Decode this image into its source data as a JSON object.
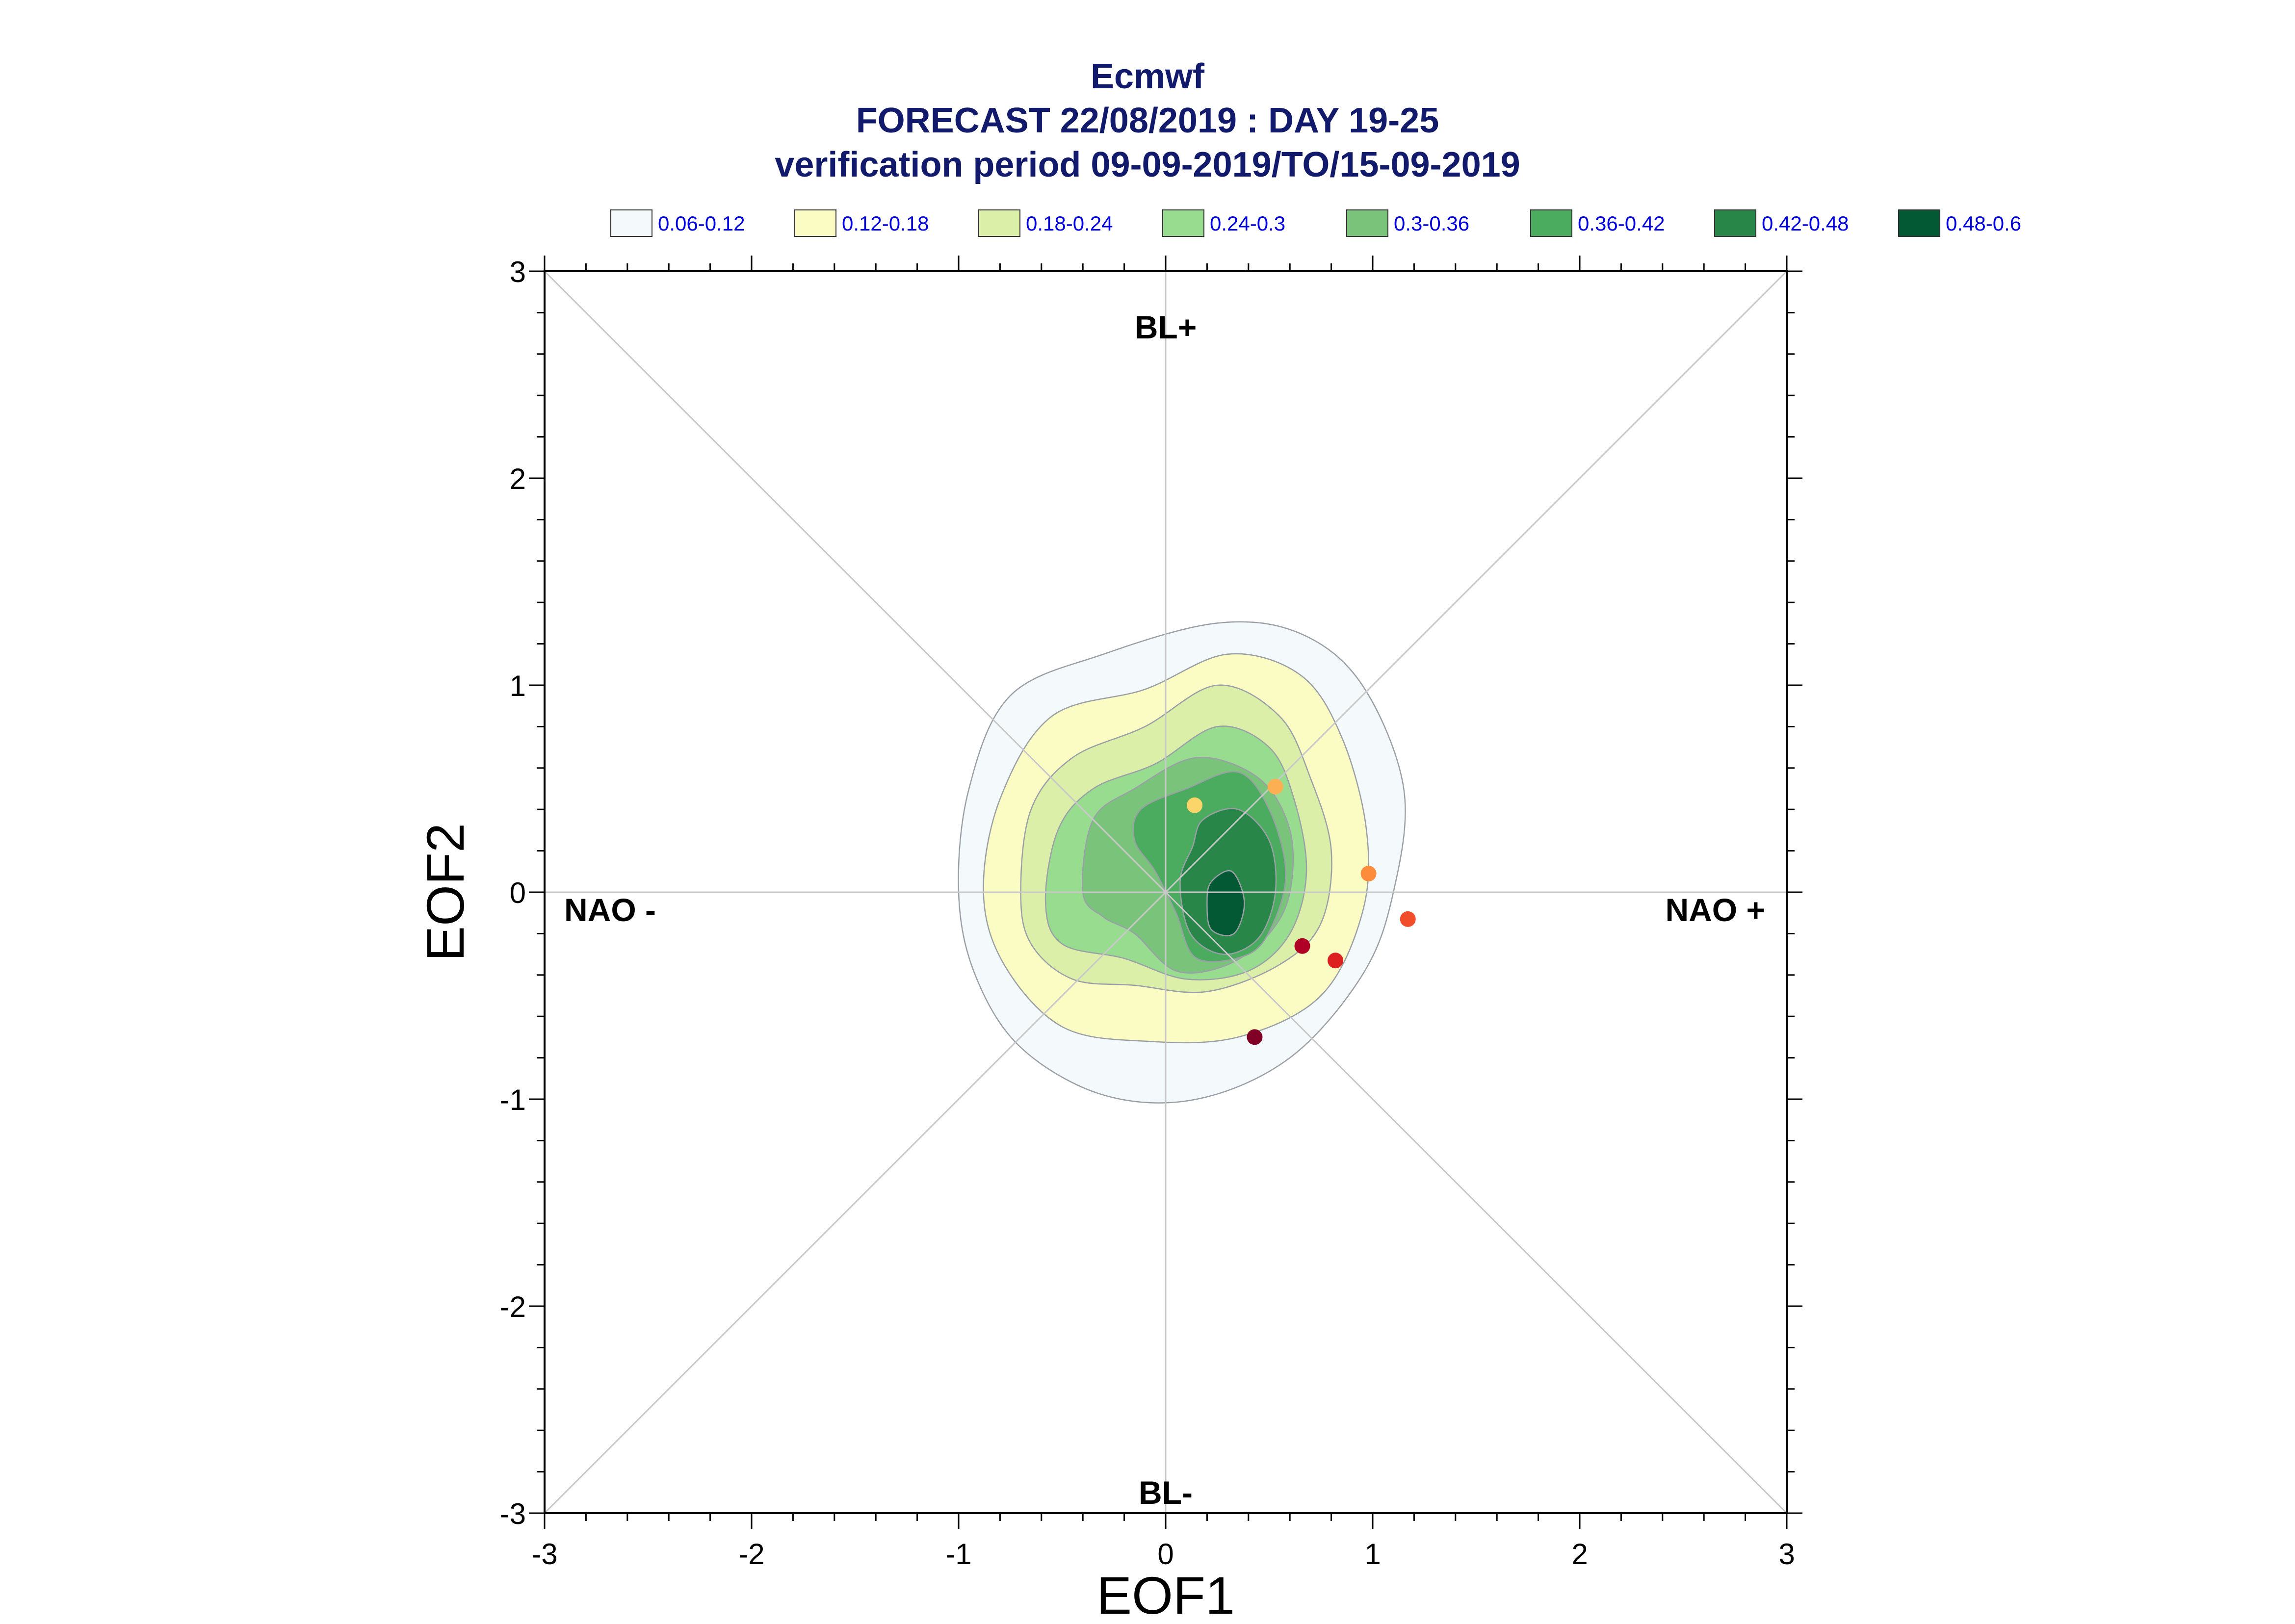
{
  "chart_data": {
    "type": "scatter",
    "title_lines": [
      "Ecmwf",
      "FORECAST 22/08/2019 : DAY 19-25",
      "verification period 09-09-2019/TO/15-09-2019"
    ],
    "xlabel": "EOF1",
    "ylabel": "EOF2",
    "xlim": [
      -3,
      3
    ],
    "ylim": [
      -3,
      3
    ],
    "xticks": [
      "-3",
      "-2",
      "-1",
      "0",
      "1",
      "2",
      "3"
    ],
    "yticks": [
      "3",
      "2",
      "1",
      "0",
      "-1",
      "-2",
      "-3"
    ],
    "regime_labels": {
      "top": "BL+",
      "bottom": "BL-",
      "left": "NAO -",
      "right": "NAO +"
    },
    "legend": [
      {
        "label": "0.06-0.12",
        "color": "#f4f9fc"
      },
      {
        "label": "0.12-0.18",
        "color": "#fbfbc4"
      },
      {
        "label": "0.18-0.24",
        "color": "#dcefa9"
      },
      {
        "label": "0.24-0.3",
        "color": "#97dc8f"
      },
      {
        "label": "0.3-0.36",
        "color": "#79c47a"
      },
      {
        "label": "0.36-0.42",
        "color": "#4bab5f"
      },
      {
        "label": "0.42-0.48",
        "color": "#288748"
      },
      {
        "label": "0.48-0.6",
        "color": "#025934"
      }
    ],
    "density_contours": [
      {
        "level": "0.06-0.12",
        "color": "#f4f9fc",
        "points": [
          [
            -1.0,
            0.0
          ],
          [
            -0.95,
            0.5
          ],
          [
            -0.75,
            0.95
          ],
          [
            -0.3,
            1.15
          ],
          [
            0.25,
            1.3
          ],
          [
            0.65,
            1.25
          ],
          [
            0.95,
            1.0
          ],
          [
            1.15,
            0.5
          ],
          [
            1.1,
            0.0
          ],
          [
            0.95,
            -0.4
          ],
          [
            0.6,
            -0.8
          ],
          [
            0.15,
            -1.0
          ],
          [
            -0.3,
            -0.98
          ],
          [
            -0.7,
            -0.75
          ],
          [
            -0.92,
            -0.4
          ]
        ]
      },
      {
        "level": "0.12-0.18",
        "color": "#fbfbc4",
        "points": [
          [
            -0.88,
            0.0
          ],
          [
            -0.8,
            0.45
          ],
          [
            -0.55,
            0.85
          ],
          [
            -0.1,
            0.98
          ],
          [
            0.3,
            1.15
          ],
          [
            0.65,
            1.05
          ],
          [
            0.85,
            0.75
          ],
          [
            0.97,
            0.3
          ],
          [
            0.95,
            -0.1
          ],
          [
            0.75,
            -0.5
          ],
          [
            0.35,
            -0.7
          ],
          [
            -0.1,
            -0.72
          ],
          [
            -0.5,
            -0.65
          ],
          [
            -0.78,
            -0.35
          ]
        ]
      },
      {
        "level": "0.18-0.24",
        "color": "#dcefa9",
        "points": [
          [
            -0.7,
            0.0
          ],
          [
            -0.65,
            0.4
          ],
          [
            -0.45,
            0.65
          ],
          [
            -0.1,
            0.8
          ],
          [
            0.25,
            1.0
          ],
          [
            0.55,
            0.85
          ],
          [
            0.7,
            0.55
          ],
          [
            0.8,
            0.2
          ],
          [
            0.75,
            -0.15
          ],
          [
            0.55,
            -0.35
          ],
          [
            0.2,
            -0.48
          ],
          [
            -0.15,
            -0.45
          ],
          [
            -0.45,
            -0.42
          ],
          [
            -0.65,
            -0.25
          ]
        ]
      },
      {
        "level": "0.24-0.3",
        "color": "#97dc8f",
        "points": [
          [
            -0.58,
            -0.05
          ],
          [
            -0.52,
            0.3
          ],
          [
            -0.35,
            0.5
          ],
          [
            -0.05,
            0.62
          ],
          [
            0.25,
            0.8
          ],
          [
            0.5,
            0.7
          ],
          [
            0.62,
            0.45
          ],
          [
            0.68,
            0.1
          ],
          [
            0.6,
            -0.2
          ],
          [
            0.4,
            -0.38
          ],
          [
            0.1,
            -0.42
          ],
          [
            -0.2,
            -0.32
          ],
          [
            -0.5,
            -0.25
          ]
        ]
      },
      {
        "level": "0.3-0.36",
        "color": "#79c47a",
        "points": [
          [
            -0.4,
            0.0
          ],
          [
            -0.35,
            0.35
          ],
          [
            -0.15,
            0.5
          ],
          [
            0.15,
            0.65
          ],
          [
            0.45,
            0.55
          ],
          [
            0.6,
            0.3
          ],
          [
            0.6,
            0.0
          ],
          [
            0.5,
            -0.2
          ],
          [
            0.3,
            -0.35
          ],
          [
            0.05,
            -0.38
          ],
          [
            -0.15,
            -0.2
          ],
          [
            -0.3,
            -0.12
          ]
        ]
      },
      {
        "level": "0.36-0.42",
        "color": "#4bab5f",
        "points": [
          [
            -0.12,
            0.4
          ],
          [
            0.1,
            0.5
          ],
          [
            0.35,
            0.58
          ],
          [
            0.5,
            0.4
          ],
          [
            0.58,
            0.1
          ],
          [
            0.52,
            -0.15
          ],
          [
            0.4,
            -0.3
          ],
          [
            0.15,
            -0.32
          ],
          [
            0.05,
            -0.1
          ],
          [
            -0.05,
            0.1
          ],
          [
            -0.15,
            0.25
          ]
        ]
      },
      {
        "level": "0.42-0.48",
        "color": "#288748",
        "points": [
          [
            0.18,
            0.35
          ],
          [
            0.35,
            0.4
          ],
          [
            0.5,
            0.25
          ],
          [
            0.53,
            0.0
          ],
          [
            0.45,
            -0.22
          ],
          [
            0.28,
            -0.3
          ],
          [
            0.12,
            -0.2
          ],
          [
            0.07,
            0.05
          ],
          [
            0.13,
            0.22
          ]
        ]
      },
      {
        "level": "0.48-0.6",
        "color": "#025934",
        "points": [
          [
            0.22,
            0.05
          ],
          [
            0.32,
            0.1
          ],
          [
            0.38,
            -0.05
          ],
          [
            0.33,
            -0.2
          ],
          [
            0.22,
            -0.18
          ],
          [
            0.2,
            -0.05
          ]
        ]
      }
    ],
    "points": [
      {
        "x": 0.14,
        "y": 0.42,
        "color": "#fcd56a"
      },
      {
        "x": 0.53,
        "y": 0.51,
        "color": "#fdb053"
      },
      {
        "x": 0.98,
        "y": 0.09,
        "color": "#fd8d3c"
      },
      {
        "x": 1.17,
        "y": -0.13,
        "color": "#f24d2a"
      },
      {
        "x": 0.82,
        "y": -0.33,
        "color": "#dd2020"
      },
      {
        "x": 0.66,
        "y": -0.26,
        "color": "#b10026"
      },
      {
        "x": 0.43,
        "y": -0.7,
        "color": "#800026"
      }
    ]
  }
}
